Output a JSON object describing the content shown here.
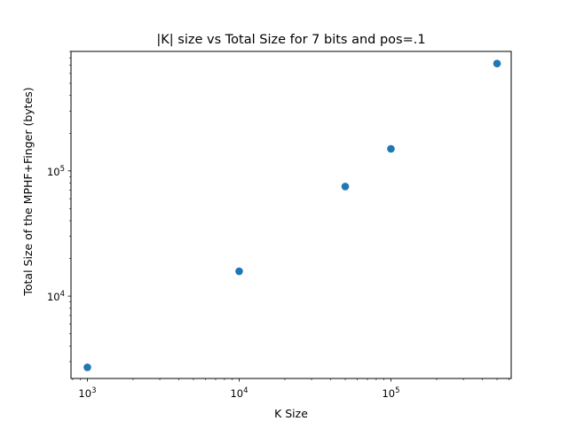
{
  "chart_data": {
    "type": "scatter",
    "title": "|K| size vs Total Size for 7 bits and pos=.1",
    "xlabel": "K Size",
    "ylabel": "Total Size of the MPHF+Finger (bytes)",
    "xscale": "log",
    "yscale": "log",
    "xlim": [
      780,
      620000
    ],
    "ylim": [
      2200,
      900000
    ],
    "grid": false,
    "color": "#1f77b4",
    "x_major_ticks": [
      {
        "value": 1000,
        "base": "10",
        "exp": "3"
      },
      {
        "value": 10000,
        "base": "10",
        "exp": "4"
      },
      {
        "value": 100000,
        "base": "10",
        "exp": "5"
      }
    ],
    "y_major_ticks": [
      {
        "value": 10000,
        "base": "10",
        "exp": "4"
      },
      {
        "value": 100000,
        "base": "10",
        "exp": "5"
      }
    ],
    "points": [
      {
        "x": 1000,
        "y": 2700
      },
      {
        "x": 10000,
        "y": 15800
      },
      {
        "x": 50000,
        "y": 75000
      },
      {
        "x": 100000,
        "y": 150000
      },
      {
        "x": 500000,
        "y": 720000
      }
    ]
  }
}
